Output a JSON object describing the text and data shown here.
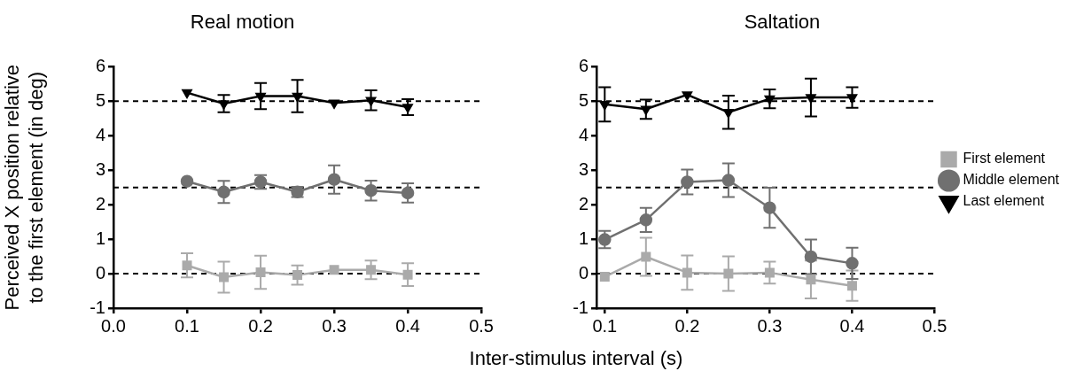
{
  "chart_data": [
    {
      "type": "line",
      "title": "Real motion",
      "ylabel": "Perceived X position relative\nto the first element (in deg)",
      "xlabel": "Inter-stimulus interval (s)",
      "x": [
        0.1,
        0.15,
        0.2,
        0.25,
        0.3,
        0.35,
        0.4
      ],
      "series": [
        {
          "color": "#aaaaaa",
          "marker": "square",
          "values": [
            0.24,
            -0.1,
            0.04,
            -0.04,
            0.11,
            0.11,
            -0.03
          ],
          "errors": [
            0.35,
            0.45,
            0.48,
            0.28,
            null,
            0.27,
            0.33
          ]
        },
        {
          "color": "#707070",
          "marker": "circle",
          "values": [
            2.68,
            2.37,
            2.66,
            2.37,
            2.73,
            2.41,
            2.34
          ],
          "errors": [
            null,
            0.32,
            0.2,
            0.15,
            0.41,
            0.29,
            0.28
          ]
        },
        {
          "color": "#000000",
          "marker": "triangle",
          "values": [
            5.25,
            4.93,
            5.15,
            5.15,
            4.95,
            5.03,
            4.83
          ],
          "errors": [
            null,
            0.25,
            0.38,
            0.47,
            null,
            0.29,
            0.23
          ]
        }
      ],
      "xlim": [
        0,
        0.5
      ],
      "xticks": [
        {
          "value": 0,
          "label": "0.0"
        },
        0.1,
        0.2,
        0.3,
        0.4,
        0.5
      ],
      "ylim": [
        -1,
        6
      ],
      "yticks": [
        -1,
        0,
        1,
        2,
        3,
        4,
        5,
        6
      ],
      "ref_lines": [
        {
          "axis": "y",
          "value": 0,
          "color": "#000000",
          "line_style": "dashed"
        },
        {
          "axis": "y",
          "value": 2.5,
          "color": "#000000",
          "line_style": "dashed"
        },
        {
          "axis": "y",
          "value": 5,
          "color": "#000000",
          "line_style": "dashed"
        }
      ],
      "grid": false,
      "legend": false,
      "line_style": "solid"
    },
    {
      "type": "line",
      "title": "Saltation",
      "x": [
        0.1,
        0.15,
        0.2,
        0.25,
        0.3,
        0.35,
        0.4
      ],
      "series": [
        {
          "name": "First element",
          "color": "#aaaaaa",
          "marker": "square",
          "values": [
            -0.09,
            0.49,
            0.03,
            0,
            0.03,
            -0.17,
            -0.35
          ],
          "errors": [
            null,
            0.55,
            0.5,
            0.5,
            0.32,
            0.55,
            0.44
          ]
        },
        {
          "name": "Middle element",
          "color": "#707070",
          "marker": "circle",
          "values": [
            0.99,
            1.56,
            2.66,
            2.71,
            1.91,
            0.49,
            0.3
          ],
          "errors": [
            0.25,
            0.35,
            0.36,
            0.49,
            0.58,
            0.5,
            0.45
          ]
        },
        {
          "name": "Last element",
          "color": "#000000",
          "marker": "triangle",
          "values": [
            4.91,
            4.77,
            5.19,
            4.68,
            5.07,
            5.11,
            5.11
          ],
          "errors": [
            0.5,
            0.28,
            null,
            0.48,
            0.27,
            0.55,
            0.3
          ]
        }
      ],
      "xlim": [
        0.09,
        0.5
      ],
      "xticks": [
        0.1,
        0.2,
        0.3,
        0.4,
        0.5
      ],
      "ylim": [
        -1,
        6
      ],
      "yticks": [
        -1,
        0,
        1,
        2,
        3,
        4,
        5,
        6
      ],
      "ref_lines": [
        {
          "axis": "y",
          "value": 0,
          "color": "#000000",
          "line_style": "dashed"
        },
        {
          "axis": "y",
          "value": 2.5,
          "color": "#000000",
          "line_style": "dashed"
        },
        {
          "axis": "y",
          "value": 5,
          "color": "#000000",
          "line_style": "dashed"
        }
      ],
      "grid": false,
      "legend": "right",
      "line_style": "solid"
    }
  ]
}
